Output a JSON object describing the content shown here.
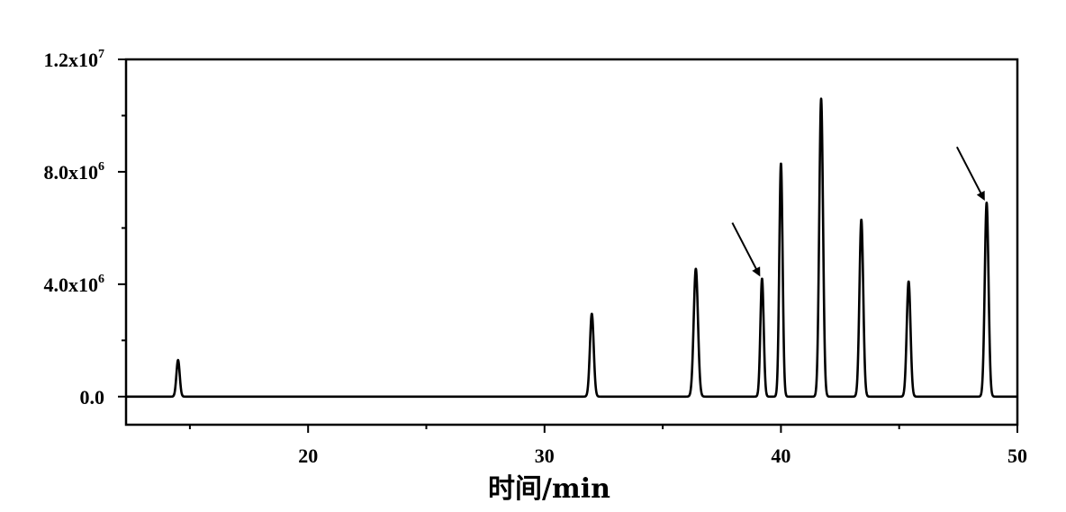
{
  "chart_data": {
    "type": "line",
    "title": "",
    "xlabel": "时间/min",
    "ylabel": "",
    "xlim": [
      12.3,
      50
    ],
    "ylim": [
      -1000000,
      12000000
    ],
    "grid": false,
    "legend": "none",
    "x_ticks": [
      {
        "value": 20,
        "label": "20"
      },
      {
        "value": 30,
        "label": "30"
      },
      {
        "value": 40,
        "label": "40"
      },
      {
        "value": 50,
        "label": "50"
      }
    ],
    "x_minor_ticks": [
      15,
      25,
      35,
      45
    ],
    "y_ticks": [
      {
        "value": 0,
        "label": "0.0"
      },
      {
        "value": 4000000,
        "label": "4.0x10",
        "exp": "6"
      },
      {
        "value": 8000000,
        "label": "8.0x10",
        "exp": "6"
      },
      {
        "value": 12000000,
        "label": "1.2x10",
        "exp": "7"
      }
    ],
    "y_minor_ticks": [
      2000000,
      6000000,
      10000000
    ],
    "series": [
      {
        "color": "#000000",
        "baseline": 0,
        "peaks": [
          {
            "x": 14.5,
            "y": 1300000,
            "width": 0.07
          },
          {
            "x": 32.0,
            "y": 2950000,
            "width": 0.08
          },
          {
            "x": 36.4,
            "y": 4550000,
            "width": 0.09
          },
          {
            "x": 39.2,
            "y": 4200000,
            "width": 0.07
          },
          {
            "x": 40.0,
            "y": 8300000,
            "width": 0.07
          },
          {
            "x": 41.7,
            "y": 10600000,
            "width": 0.08
          },
          {
            "x": 43.4,
            "y": 6300000,
            "width": 0.08
          },
          {
            "x": 45.4,
            "y": 4100000,
            "width": 0.08
          },
          {
            "x": 48.7,
            "y": 6900000,
            "width": 0.08
          }
        ]
      }
    ],
    "annotations": [
      {
        "type": "arrow",
        "target_x": 39.2,
        "target_y": 4200000
      },
      {
        "type": "arrow",
        "target_x": 48.7,
        "target_y": 6900000
      }
    ]
  }
}
